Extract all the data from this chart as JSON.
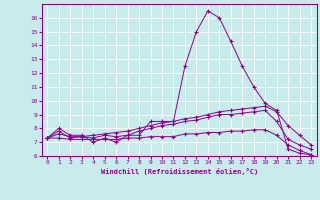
{
  "title": "",
  "xlabel": "Windchill (Refroidissement éolien,°C)",
  "ylabel": "",
  "background_color": "#c8ecec",
  "line_color": "#8b008b",
  "grid_color": "#ffffff",
  "xlim": [
    -0.5,
    23.5
  ],
  "ylim": [
    6,
    17
  ],
  "yticks": [
    6,
    7,
    8,
    9,
    10,
    11,
    12,
    13,
    14,
    15,
    16
  ],
  "xticks": [
    0,
    1,
    2,
    3,
    4,
    5,
    6,
    7,
    8,
    9,
    10,
    11,
    12,
    13,
    14,
    15,
    16,
    17,
    18,
    19,
    20,
    21,
    22,
    23
  ],
  "lines": [
    [
      7.3,
      8.0,
      7.5,
      7.5,
      7.0,
      7.3,
      7.0,
      7.5,
      7.5,
      8.5,
      8.5,
      8.5,
      12.5,
      15.0,
      16.5,
      16.0,
      14.3,
      12.5,
      11.0,
      9.8,
      9.3,
      6.5,
      6.2,
      6.1
    ],
    [
      7.3,
      7.8,
      7.3,
      7.4,
      7.5,
      7.6,
      7.7,
      7.8,
      8.0,
      8.2,
      8.4,
      8.5,
      8.7,
      8.8,
      9.0,
      9.2,
      9.3,
      9.4,
      9.5,
      9.6,
      9.2,
      8.2,
      7.5,
      6.8
    ],
    [
      7.3,
      7.6,
      7.4,
      7.4,
      7.3,
      7.5,
      7.4,
      7.5,
      7.8,
      8.0,
      8.2,
      8.3,
      8.5,
      8.6,
      8.8,
      9.0,
      9.0,
      9.1,
      9.2,
      9.3,
      8.5,
      7.2,
      6.8,
      6.5
    ],
    [
      7.3,
      7.3,
      7.2,
      7.2,
      7.2,
      7.2,
      7.2,
      7.3,
      7.3,
      7.4,
      7.4,
      7.4,
      7.6,
      7.6,
      7.7,
      7.7,
      7.8,
      7.8,
      7.9,
      7.9,
      7.5,
      6.8,
      6.4,
      6.1
    ]
  ]
}
